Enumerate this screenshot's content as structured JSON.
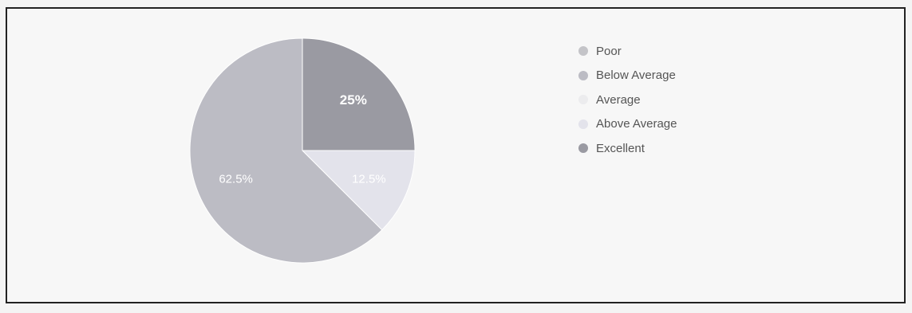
{
  "chart_data": {
    "type": "pie",
    "title": "",
    "categories": [
      "Poor",
      "Below Average",
      "Average",
      "Above Average",
      "Excellent"
    ],
    "values": [
      0,
      62.5,
      0,
      12.5,
      25
    ],
    "data_labels": [
      "",
      "62.5%",
      "",
      "12.5%",
      "25%"
    ],
    "colors": [
      "#c4c4c8",
      "#bcbcc4",
      "#ececee",
      "#e3e3eb",
      "#9a9aa2"
    ],
    "legend_position": "right"
  }
}
